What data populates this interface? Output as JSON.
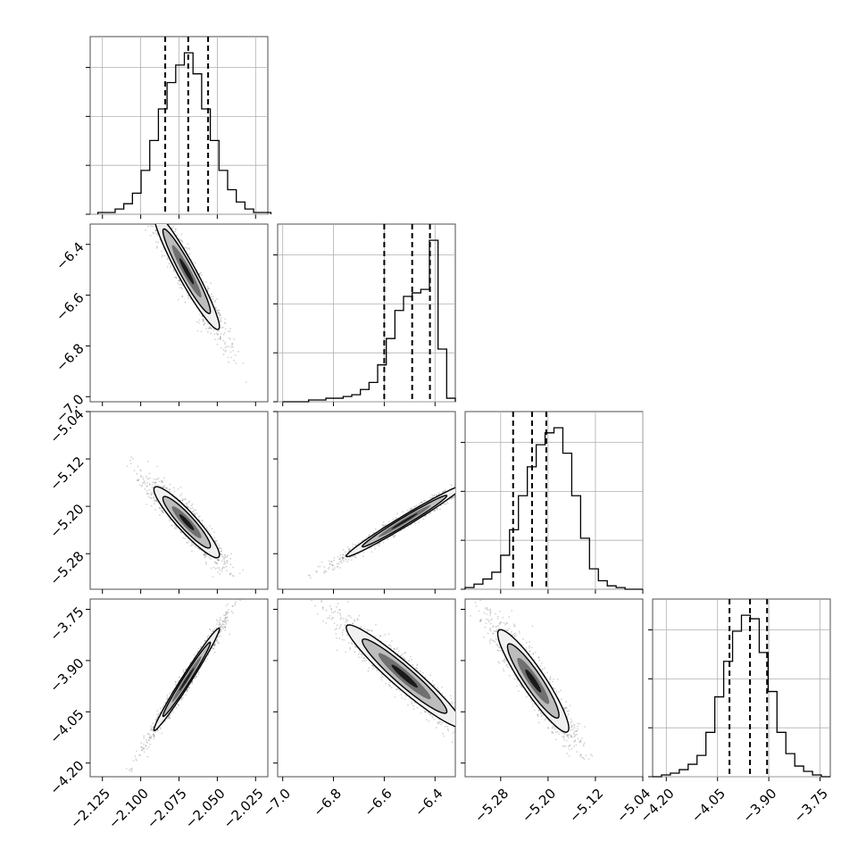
{
  "chart_data": {
    "type": "corner",
    "title": "",
    "parameters": [
      "",
      "",
      "",
      ""
    ],
    "colors": {
      "hist": "#000000",
      "scatter": "#555555",
      "grid": "#b0b0b0",
      "frame": "#4d4d4d"
    },
    "grid": true,
    "ranges": [
      [
        -2.133,
        -2.017
      ],
      [
        -7.02,
        -6.32
      ],
      [
        -5.34,
        -5.04
      ],
      [
        -4.24,
        -3.72
      ]
    ],
    "ticks": [
      {
        "values": [
          -2.125,
          -2.1,
          -2.075,
          -2.05,
          -2.025
        ],
        "labels": [
          "−2.125",
          "−2.100",
          "−2.075",
          "−2.050",
          "−2.025"
        ]
      },
      {
        "values": [
          -7.0,
          -6.8,
          -6.6,
          -6.4
        ],
        "labels": [
          "−7.0",
          "−6.8",
          "−6.6",
          "−6.4"
        ]
      },
      {
        "values": [
          -5.28,
          -5.2,
          -5.12,
          -5.04
        ],
        "labels": [
          "−5.28",
          "−5.20",
          "−5.12",
          "−5.04"
        ]
      },
      {
        "values": [
          -4.2,
          -4.05,
          -3.9,
          -3.75
        ],
        "labels": [
          "−4.20",
          "−4.05",
          "−3.90",
          "−3.75"
        ]
      }
    ],
    "quantiles": [
      [
        -2.084,
        -2.069,
        -2.056
      ],
      [
        -6.6,
        -6.49,
        -6.42
      ],
      [
        -5.259,
        -5.227,
        -5.203
      ],
      [
        -4.015,
        -3.955,
        -3.905
      ]
    ],
    "histograms": [
      {
        "edges": [
          -2.128,
          -2.015
        ],
        "counts": [
          1,
          1,
          3,
          6,
          12,
          25,
          42,
          60,
          75,
          85,
          92,
          80,
          60,
          42,
          25,
          14,
          7,
          3,
          1,
          1
        ]
      },
      {
        "edges": [
          -7.0,
          -6.32
        ],
        "counts": [
          0,
          0,
          0,
          1,
          1,
          2,
          2,
          3,
          4,
          7,
          11,
          21,
          36,
          52,
          60,
          62,
          64,
          92,
          30,
          2
        ]
      },
      {
        "edges": [
          -5.34,
          -5.04
        ],
        "counts": [
          1,
          3,
          6,
          10,
          20,
          35,
          55,
          72,
          85,
          92,
          95,
          80,
          55,
          30,
          12,
          5,
          2,
          1,
          0,
          0
        ]
      },
      {
        "edges": [
          -4.24,
          -3.72
        ],
        "counts": [
          0,
          1,
          2,
          4,
          7,
          12,
          25,
          45,
          65,
          82,
          91,
          89,
          70,
          48,
          25,
          13,
          6,
          3,
          1,
          0
        ]
      }
    ],
    "pairs": [
      {
        "x": 0,
        "y": 1,
        "center": [
          -2.07,
          -6.52
        ],
        "sd": [
          0.0107,
          0.115
        ],
        "rho": -0.95,
        "curve": -0.5
      },
      {
        "x": 0,
        "y": 2,
        "center": [
          -2.07,
          -5.225
        ],
        "sd": [
          0.0107,
          0.03
        ],
        "rho": -0.92,
        "curve": 0.25
      },
      {
        "x": 1,
        "y": 2,
        "center": [
          -6.52,
          -5.225
        ],
        "sd": [
          0.115,
          0.03
        ],
        "rho": 0.985,
        "curve": 0
      },
      {
        "x": 0,
        "y": 3,
        "center": [
          -2.07,
          -3.955
        ],
        "sd": [
          0.0107,
          0.075
        ],
        "rho": 0.985,
        "curve": 0
      },
      {
        "x": 1,
        "y": 3,
        "center": [
          -6.52,
          -3.955
        ],
        "sd": [
          0.115,
          0.075
        ],
        "rho": -0.95,
        "curve": -0.5
      },
      {
        "x": 2,
        "y": 3,
        "center": [
          -5.225,
          -3.955
        ],
        "sd": [
          0.03,
          0.075
        ],
        "rho": -0.92,
        "curve": 0.25
      }
    ]
  }
}
